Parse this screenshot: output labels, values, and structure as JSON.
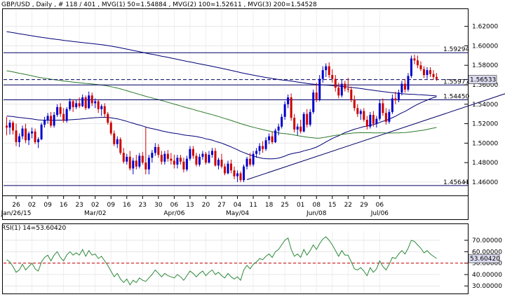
{
  "header": {
    "symbol": "GBP/USD",
    "timeframe": "Daily",
    "bar_index": "# 118 / 401",
    "mvg1_label": "MVG(1) 50=1.54884",
    "mvg2_label": "MVG(2) 100=1.52611",
    "mvg3_label": "MVG(3) 200=1.54528"
  },
  "rsi_header": "RSI(1) 14=53.60420",
  "colors": {
    "bull": "#0000cc",
    "bear": "#cc0000",
    "mvg50": "#000077",
    "mvg100": "#2d7a2d",
    "mvg200": "#000077",
    "hline": "#000066",
    "rsi_line": "#2d8a3a",
    "rsi_ref": "#cc0000",
    "price_label_bg": "#dcdcf0"
  },
  "chart_data": [
    {
      "type": "candlestick",
      "title": "GBP/USD, Daily",
      "ylim": [
        1.447,
        1.637
      ],
      "yticks": [
        "1.46000",
        "1.48000",
        "1.50000",
        "1.52000",
        "1.54000",
        "1.56000",
        "1.58000",
        "1.60000",
        "1.62000"
      ],
      "xticks": [
        "26",
        "02",
        "09",
        "16",
        "23",
        "02",
        "09",
        "16",
        "23",
        "30",
        "06",
        "13",
        "20",
        "27",
        "04",
        "11",
        "18",
        "25",
        "01",
        "08",
        "15",
        "22",
        "29",
        "06"
      ],
      "month_labels": [
        "Jan/26/15",
        "Mar/02",
        "Apr/06",
        "May/04",
        "Jun/08",
        "Jul/06"
      ],
      "horizontal_levels": [
        {
          "label": "1.59294",
          "value": 1.59294,
          "style": "solid"
        },
        {
          "label": "1.55977",
          "value": 1.55977,
          "style": "solid"
        },
        {
          "label": "1.54450",
          "value": 1.5445,
          "style": "solid"
        },
        {
          "label": "1.45641",
          "value": 1.45641,
          "style": "solid"
        },
        {
          "label": "1.56533",
          "value": 1.56533,
          "style": "dashed",
          "current": true
        }
      ],
      "trendlines": [
        {
          "from": {
            "bar": 76,
            "price": 1.4625
          },
          "to": {
            "bar": 162,
            "price": 1.5555
          }
        }
      ],
      "candles": [
        {
          "o": 1.518,
          "h": 1.527,
          "l": 1.508,
          "c": 1.516
        },
        {
          "o": 1.516,
          "h": 1.524,
          "l": 1.509,
          "c": 1.521
        },
        {
          "o": 1.521,
          "h": 1.523,
          "l": 1.509,
          "c": 1.513
        },
        {
          "o": 1.513,
          "h": 1.52,
          "l": 1.497,
          "c": 1.501
        },
        {
          "o": 1.501,
          "h": 1.51,
          "l": 1.496,
          "c": 1.507
        },
        {
          "o": 1.507,
          "h": 1.518,
          "l": 1.504,
          "c": 1.515
        },
        {
          "o": 1.515,
          "h": 1.52,
          "l": 1.5,
          "c": 1.503
        },
        {
          "o": 1.503,
          "h": 1.512,
          "l": 1.498,
          "c": 1.51
        },
        {
          "o": 1.51,
          "h": 1.516,
          "l": 1.505,
          "c": 1.512
        },
        {
          "o": 1.512,
          "h": 1.515,
          "l": 1.499,
          "c": 1.501
        },
        {
          "o": 1.501,
          "h": 1.506,
          "l": 1.495,
          "c": 1.504
        },
        {
          "o": 1.504,
          "h": 1.521,
          "l": 1.503,
          "c": 1.519
        },
        {
          "o": 1.519,
          "h": 1.527,
          "l": 1.516,
          "c": 1.524
        },
        {
          "o": 1.524,
          "h": 1.531,
          "l": 1.52,
          "c": 1.528
        },
        {
          "o": 1.528,
          "h": 1.532,
          "l": 1.516,
          "c": 1.518
        },
        {
          "o": 1.518,
          "h": 1.532,
          "l": 1.516,
          "c": 1.529
        },
        {
          "o": 1.529,
          "h": 1.54,
          "l": 1.527,
          "c": 1.537
        },
        {
          "o": 1.537,
          "h": 1.541,
          "l": 1.527,
          "c": 1.53
        },
        {
          "o": 1.53,
          "h": 1.536,
          "l": 1.521,
          "c": 1.523
        },
        {
          "o": 1.523,
          "h": 1.537,
          "l": 1.521,
          "c": 1.535
        },
        {
          "o": 1.535,
          "h": 1.546,
          "l": 1.533,
          "c": 1.543
        },
        {
          "o": 1.543,
          "h": 1.545,
          "l": 1.532,
          "c": 1.537
        },
        {
          "o": 1.537,
          "h": 1.544,
          "l": 1.535,
          "c": 1.541
        },
        {
          "o": 1.541,
          "h": 1.547,
          "l": 1.536,
          "c": 1.538
        },
        {
          "o": 1.538,
          "h": 1.55,
          "l": 1.537,
          "c": 1.547
        },
        {
          "o": 1.547,
          "h": 1.549,
          "l": 1.534,
          "c": 1.536
        },
        {
          "o": 1.536,
          "h": 1.553,
          "l": 1.535,
          "c": 1.549
        },
        {
          "o": 1.549,
          "h": 1.552,
          "l": 1.538,
          "c": 1.541
        },
        {
          "o": 1.541,
          "h": 1.546,
          "l": 1.536,
          "c": 1.543
        },
        {
          "o": 1.543,
          "h": 1.545,
          "l": 1.531,
          "c": 1.535
        },
        {
          "o": 1.535,
          "h": 1.54,
          "l": 1.528,
          "c": 1.538
        },
        {
          "o": 1.538,
          "h": 1.541,
          "l": 1.527,
          "c": 1.53
        },
        {
          "o": 1.53,
          "h": 1.532,
          "l": 1.519,
          "c": 1.521
        },
        {
          "o": 1.521,
          "h": 1.523,
          "l": 1.508,
          "c": 1.51
        },
        {
          "o": 1.51,
          "h": 1.513,
          "l": 1.497,
          "c": 1.499
        },
        {
          "o": 1.499,
          "h": 1.507,
          "l": 1.495,
          "c": 1.504
        },
        {
          "o": 1.504,
          "h": 1.506,
          "l": 1.488,
          "c": 1.49
        },
        {
          "o": 1.49,
          "h": 1.495,
          "l": 1.479,
          "c": 1.481
        },
        {
          "o": 1.481,
          "h": 1.489,
          "l": 1.478,
          "c": 1.486
        },
        {
          "o": 1.486,
          "h": 1.492,
          "l": 1.472,
          "c": 1.474
        },
        {
          "o": 1.474,
          "h": 1.485,
          "l": 1.468,
          "c": 1.482
        },
        {
          "o": 1.482,
          "h": 1.488,
          "l": 1.473,
          "c": 1.476
        },
        {
          "o": 1.476,
          "h": 1.49,
          "l": 1.474,
          "c": 1.487
        },
        {
          "o": 1.487,
          "h": 1.491,
          "l": 1.478,
          "c": 1.48
        },
        {
          "o": 1.48,
          "h": 1.516,
          "l": 1.468,
          "c": 1.473
        },
        {
          "o": 1.473,
          "h": 1.488,
          "l": 1.468,
          "c": 1.485
        },
        {
          "o": 1.485,
          "h": 1.493,
          "l": 1.48,
          "c": 1.49
        },
        {
          "o": 1.49,
          "h": 1.5,
          "l": 1.487,
          "c": 1.496
        },
        {
          "o": 1.496,
          "h": 1.499,
          "l": 1.485,
          "c": 1.488
        },
        {
          "o": 1.488,
          "h": 1.492,
          "l": 1.478,
          "c": 1.481
        },
        {
          "o": 1.481,
          "h": 1.492,
          "l": 1.478,
          "c": 1.489
        },
        {
          "o": 1.489,
          "h": 1.493,
          "l": 1.481,
          "c": 1.484
        },
        {
          "o": 1.484,
          "h": 1.49,
          "l": 1.478,
          "c": 1.482
        },
        {
          "o": 1.482,
          "h": 1.488,
          "l": 1.474,
          "c": 1.478
        },
        {
          "o": 1.478,
          "h": 1.488,
          "l": 1.474,
          "c": 1.485
        },
        {
          "o": 1.485,
          "h": 1.488,
          "l": 1.478,
          "c": 1.481
        },
        {
          "o": 1.481,
          "h": 1.485,
          "l": 1.47,
          "c": 1.473
        },
        {
          "o": 1.473,
          "h": 1.487,
          "l": 1.471,
          "c": 1.484
        },
        {
          "o": 1.484,
          "h": 1.497,
          "l": 1.482,
          "c": 1.494
        },
        {
          "o": 1.494,
          "h": 1.497,
          "l": 1.484,
          "c": 1.487
        },
        {
          "o": 1.487,
          "h": 1.49,
          "l": 1.476,
          "c": 1.478
        },
        {
          "o": 1.478,
          "h": 1.489,
          "l": 1.476,
          "c": 1.486
        },
        {
          "o": 1.486,
          "h": 1.492,
          "l": 1.483,
          "c": 1.489
        },
        {
          "o": 1.489,
          "h": 1.491,
          "l": 1.478,
          "c": 1.48
        },
        {
          "o": 1.48,
          "h": 1.492,
          "l": 1.479,
          "c": 1.488
        },
        {
          "o": 1.488,
          "h": 1.495,
          "l": 1.485,
          "c": 1.492
        },
        {
          "o": 1.492,
          "h": 1.495,
          "l": 1.476,
          "c": 1.477
        },
        {
          "o": 1.477,
          "h": 1.485,
          "l": 1.473,
          "c": 1.483
        },
        {
          "o": 1.483,
          "h": 1.489,
          "l": 1.474,
          "c": 1.476
        },
        {
          "o": 1.476,
          "h": 1.479,
          "l": 1.467,
          "c": 1.469
        },
        {
          "o": 1.469,
          "h": 1.482,
          "l": 1.468,
          "c": 1.479
        },
        {
          "o": 1.479,
          "h": 1.483,
          "l": 1.469,
          "c": 1.472
        },
        {
          "o": 1.472,
          "h": 1.476,
          "l": 1.463,
          "c": 1.466
        },
        {
          "o": 1.466,
          "h": 1.472,
          "l": 1.46,
          "c": 1.469
        },
        {
          "o": 1.469,
          "h": 1.471,
          "l": 1.46,
          "c": 1.462
        },
        {
          "o": 1.462,
          "h": 1.478,
          "l": 1.46,
          "c": 1.476
        },
        {
          "o": 1.476,
          "h": 1.486,
          "l": 1.473,
          "c": 1.484
        },
        {
          "o": 1.484,
          "h": 1.49,
          "l": 1.476,
          "c": 1.478
        },
        {
          "o": 1.478,
          "h": 1.492,
          "l": 1.476,
          "c": 1.489
        },
        {
          "o": 1.489,
          "h": 1.495,
          "l": 1.485,
          "c": 1.492
        },
        {
          "o": 1.492,
          "h": 1.5,
          "l": 1.488,
          "c": 1.497
        },
        {
          "o": 1.497,
          "h": 1.502,
          "l": 1.49,
          "c": 1.494
        },
        {
          "o": 1.494,
          "h": 1.506,
          "l": 1.492,
          "c": 1.503
        },
        {
          "o": 1.503,
          "h": 1.51,
          "l": 1.499,
          "c": 1.507
        },
        {
          "o": 1.507,
          "h": 1.512,
          "l": 1.499,
          "c": 1.501
        },
        {
          "o": 1.501,
          "h": 1.515,
          "l": 1.5,
          "c": 1.513
        },
        {
          "o": 1.513,
          "h": 1.52,
          "l": 1.508,
          "c": 1.517
        },
        {
          "o": 1.517,
          "h": 1.53,
          "l": 1.515,
          "c": 1.527
        },
        {
          "o": 1.527,
          "h": 1.543,
          "l": 1.524,
          "c": 1.54
        },
        {
          "o": 1.54,
          "h": 1.55,
          "l": 1.536,
          "c": 1.547
        },
        {
          "o": 1.547,
          "h": 1.551,
          "l": 1.523,
          "c": 1.526
        },
        {
          "o": 1.526,
          "h": 1.53,
          "l": 1.511,
          "c": 1.514
        },
        {
          "o": 1.514,
          "h": 1.52,
          "l": 1.508,
          "c": 1.517
        },
        {
          "o": 1.517,
          "h": 1.524,
          "l": 1.51,
          "c": 1.512
        },
        {
          "o": 1.512,
          "h": 1.532,
          "l": 1.511,
          "c": 1.53
        },
        {
          "o": 1.53,
          "h": 1.535,
          "l": 1.516,
          "c": 1.519
        },
        {
          "o": 1.519,
          "h": 1.535,
          "l": 1.517,
          "c": 1.532
        },
        {
          "o": 1.532,
          "h": 1.555,
          "l": 1.53,
          "c": 1.552
        },
        {
          "o": 1.552,
          "h": 1.562,
          "l": 1.542,
          "c": 1.545
        },
        {
          "o": 1.545,
          "h": 1.57,
          "l": 1.543,
          "c": 1.566
        },
        {
          "o": 1.566,
          "h": 1.579,
          "l": 1.562,
          "c": 1.575
        },
        {
          "o": 1.575,
          "h": 1.582,
          "l": 1.568,
          "c": 1.579
        },
        {
          "o": 1.579,
          "h": 1.583,
          "l": 1.567,
          "c": 1.57
        },
        {
          "o": 1.57,
          "h": 1.576,
          "l": 1.562,
          "c": 1.566
        },
        {
          "o": 1.566,
          "h": 1.57,
          "l": 1.553,
          "c": 1.557
        },
        {
          "o": 1.557,
          "h": 1.562,
          "l": 1.546,
          "c": 1.549
        },
        {
          "o": 1.549,
          "h": 1.565,
          "l": 1.547,
          "c": 1.561
        },
        {
          "o": 1.561,
          "h": 1.564,
          "l": 1.553,
          "c": 1.556
        },
        {
          "o": 1.556,
          "h": 1.567,
          "l": 1.552,
          "c": 1.555
        },
        {
          "o": 1.555,
          "h": 1.558,
          "l": 1.542,
          "c": 1.545
        },
        {
          "o": 1.545,
          "h": 1.549,
          "l": 1.533,
          "c": 1.536
        },
        {
          "o": 1.536,
          "h": 1.54,
          "l": 1.527,
          "c": 1.53
        },
        {
          "o": 1.53,
          "h": 1.535,
          "l": 1.524,
          "c": 1.533
        },
        {
          "o": 1.533,
          "h": 1.536,
          "l": 1.522,
          "c": 1.524
        },
        {
          "o": 1.524,
          "h": 1.528,
          "l": 1.514,
          "c": 1.517
        },
        {
          "o": 1.517,
          "h": 1.532,
          "l": 1.515,
          "c": 1.529
        },
        {
          "o": 1.529,
          "h": 1.533,
          "l": 1.517,
          "c": 1.52
        },
        {
          "o": 1.52,
          "h": 1.528,
          "l": 1.516,
          "c": 1.525
        },
        {
          "o": 1.525,
          "h": 1.545,
          "l": 1.523,
          "c": 1.541
        },
        {
          "o": 1.541,
          "h": 1.546,
          "l": 1.528,
          "c": 1.531
        },
        {
          "o": 1.531,
          "h": 1.536,
          "l": 1.519,
          "c": 1.522
        },
        {
          "o": 1.522,
          "h": 1.535,
          "l": 1.52,
          "c": 1.532
        },
        {
          "o": 1.532,
          "h": 1.55,
          "l": 1.53,
          "c": 1.546
        },
        {
          "o": 1.546,
          "h": 1.553,
          "l": 1.54,
          "c": 1.544
        },
        {
          "o": 1.544,
          "h": 1.555,
          "l": 1.542,
          "c": 1.552
        },
        {
          "o": 1.552,
          "h": 1.564,
          "l": 1.549,
          "c": 1.561
        },
        {
          "o": 1.561,
          "h": 1.566,
          "l": 1.552,
          "c": 1.555
        },
        {
          "o": 1.555,
          "h": 1.572,
          "l": 1.553,
          "c": 1.569
        },
        {
          "o": 1.569,
          "h": 1.59,
          "l": 1.567,
          "c": 1.587
        },
        {
          "o": 1.587,
          "h": 1.591,
          "l": 1.581,
          "c": 1.585
        },
        {
          "o": 1.585,
          "h": 1.59,
          "l": 1.577,
          "c": 1.58
        },
        {
          "o": 1.58,
          "h": 1.584,
          "l": 1.574,
          "c": 1.576
        },
        {
          "o": 1.576,
          "h": 1.579,
          "l": 1.567,
          "c": 1.57
        },
        {
          "o": 1.57,
          "h": 1.578,
          "l": 1.566,
          "c": 1.575
        },
        {
          "o": 1.575,
          "h": 1.578,
          "l": 1.568,
          "c": 1.571
        },
        {
          "o": 1.571,
          "h": 1.575,
          "l": 1.565,
          "c": 1.568
        },
        {
          "o": 1.568,
          "h": 1.572,
          "l": 1.564,
          "c": 1.566
        }
      ]
    },
    {
      "type": "line",
      "title": "RSI(1) 14=53.60420",
      "ylim": [
        24,
        78
      ],
      "yticks": [
        "30.00000",
        "40.00000",
        "50.00000",
        "60.00000",
        "70.00000"
      ],
      "reference_level": 50,
      "current_label": "53.60420",
      "values": [
        53,
        51,
        47,
        42,
        44,
        49,
        44,
        47,
        50,
        45,
        43,
        51,
        55,
        57,
        52,
        57,
        60,
        55,
        52,
        57,
        60,
        57,
        59,
        57,
        62,
        56,
        61,
        57,
        58,
        54,
        56,
        52,
        48,
        43,
        38,
        41,
        36,
        33,
        36,
        31,
        35,
        33,
        37,
        35,
        34,
        37,
        40,
        44,
        41,
        38,
        41,
        39,
        38,
        37,
        40,
        38,
        35,
        39,
        43,
        41,
        38,
        41,
        43,
        39,
        42,
        44,
        40,
        42,
        39,
        37,
        41,
        38,
        36,
        38,
        35,
        44,
        48,
        45,
        49,
        51,
        54,
        53,
        56,
        58,
        55,
        60,
        62,
        66,
        70,
        72,
        62,
        56,
        58,
        55,
        62,
        57,
        61,
        66,
        62,
        67,
        71,
        73,
        70,
        66,
        61,
        56,
        61,
        57,
        57,
        51,
        45,
        44,
        46,
        43,
        39,
        46,
        42,
        45,
        52,
        47,
        44,
        49,
        55,
        54,
        58,
        61,
        58,
        63,
        70,
        69,
        66,
        63,
        59,
        61,
        58,
        56,
        54
      ]
    }
  ]
}
